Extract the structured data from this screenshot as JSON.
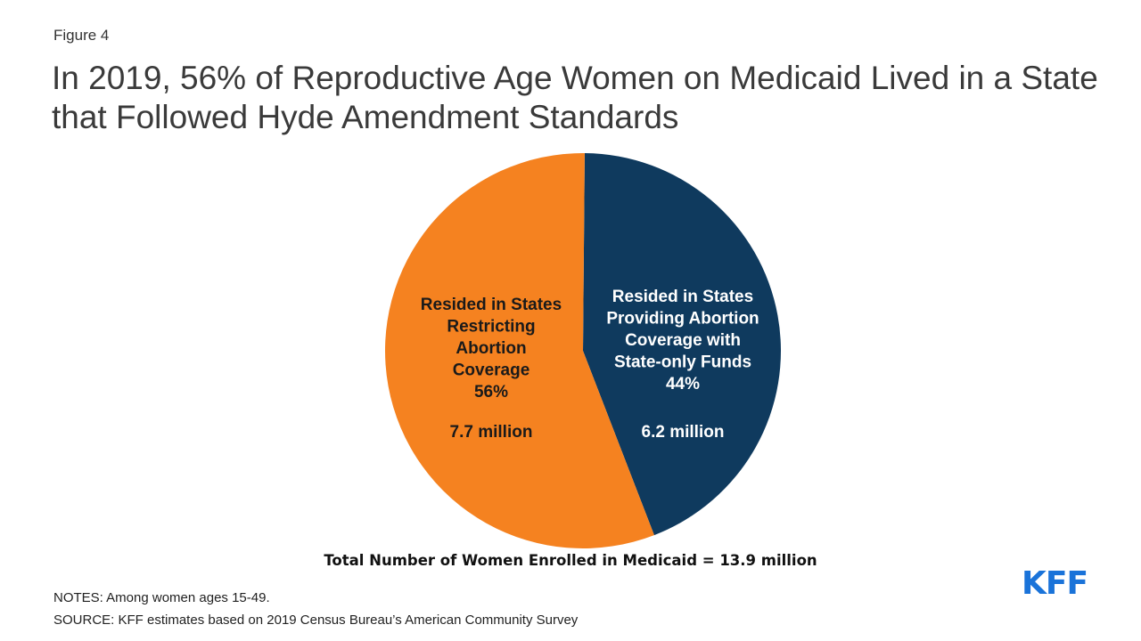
{
  "figure_label": "Figure 4",
  "title": "In 2019, 56% of Reproductive Age Women on Medicaid Lived in a State that Followed Hyde Amendment Standards",
  "total_note": "Total Number of Women Enrolled in Medicaid = 13.9 million",
  "notes": "NOTES: Among women ages 15-49.",
  "source": "SOURCE: KFF estimates based on 2019 Census Bureau’s American Community Survey",
  "logo": "KFF",
  "colors": {
    "restricting": "#f58220",
    "providing": "#0f3a5e",
    "logo": "#1a73d9"
  },
  "chart_data": {
    "type": "pie",
    "slices": [
      {
        "label_lines": [
          "Resided in States",
          "Providing Abortion",
          "Coverage with",
          "State-only Funds"
        ],
        "percent_label": "44%",
        "value": 44,
        "amount_label": "6.2 million",
        "color": "#0f3a5e",
        "text_color": "#ffffff"
      },
      {
        "label_lines": [
          "Resided in States",
          "Restricting",
          "Abortion",
          "Coverage"
        ],
        "percent_label": "56%",
        "value": 56,
        "amount_label": "7.7 million",
        "color": "#f58220",
        "text_color": "#1a1a1a"
      }
    ]
  }
}
